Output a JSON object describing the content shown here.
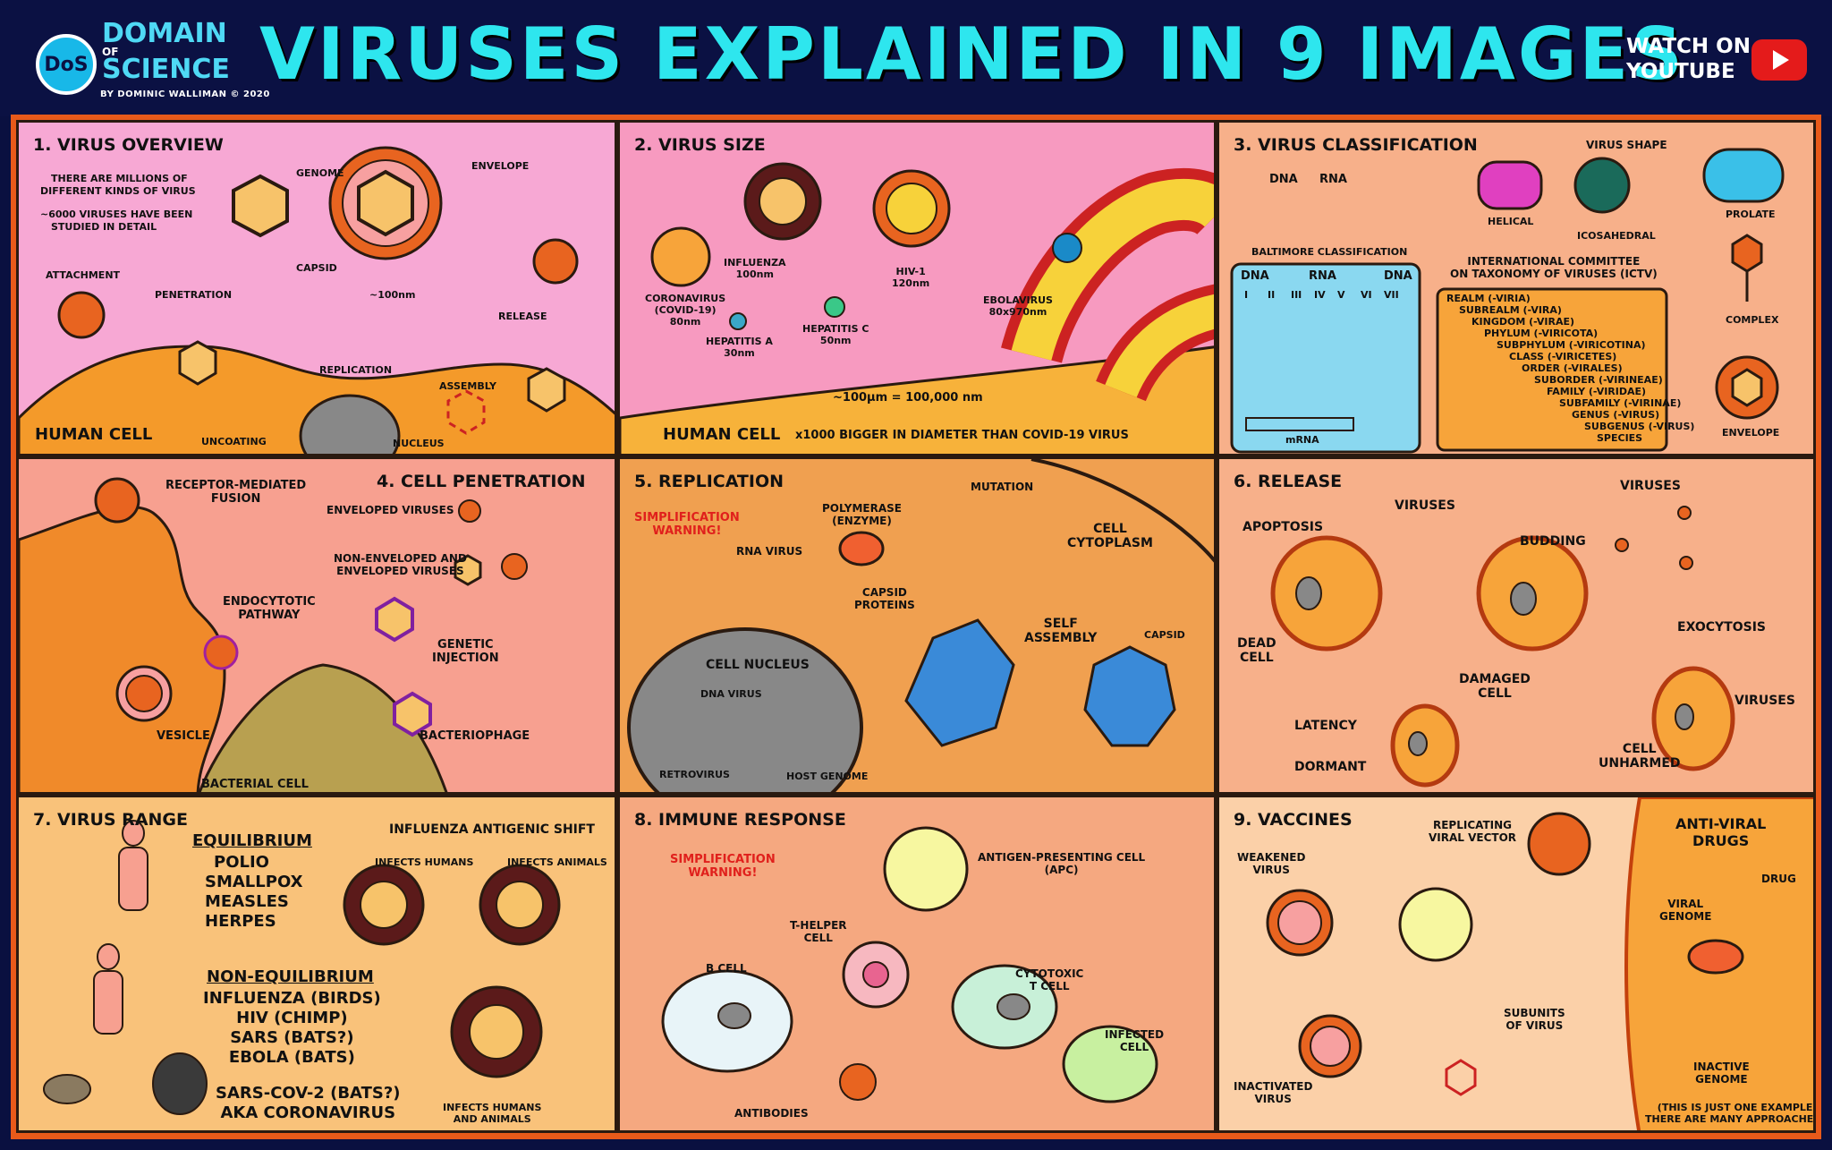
{
  "header": {
    "logo_initials": "DoS",
    "logo_line1": "DOMAIN",
    "logo_of": "OF",
    "logo_line2": "SCIENCE",
    "byline": "BY DOMINIC WALLIMAN © 2020",
    "title": "VIRUSES EXPLAINED IN 9 IMAGES",
    "watch_line1": "WATCH ON",
    "watch_line2": "YOUTUBE"
  },
  "colors": {
    "title": "#2ee6ee",
    "header_bg": "#0b1143",
    "frame": "#e85a1a",
    "youtube": "#e41b1b"
  },
  "p1": {
    "title": "1. VIRUS OVERVIEW",
    "intro1": "THERE ARE MILLIONS OF",
    "intro2": "DIFFERENT KINDS OF VIRUS",
    "intro3": "~6000 VIRUSES HAVE BEEN",
    "intro4": "STUDIED IN DETAIL",
    "genome": "GENOME",
    "envelope": "ENVELOPE",
    "capsid": "CAPSID",
    "size": "~100nm",
    "attachment": "ATTACHMENT",
    "penetration": "PENETRATION",
    "replication": "REPLICATION",
    "assembly": "ASSEMBLY",
    "release": "RELEASE",
    "uncoating": "UNCOATING",
    "nucleus": "NUCLEUS",
    "human_cell": "HUMAN CELL"
  },
  "p2": {
    "title": "2. VIRUS SIZE",
    "influenza": "INFLUENZA",
    "influenza_size": "100nm",
    "hiv": "HIV-1",
    "hiv_size": "120nm",
    "corona1": "CORONAVIRUS",
    "corona2": "(COVID-19)",
    "corona_size": "80nm",
    "hepa": "HEPATITIS A",
    "hepa_size": "30nm",
    "hepc": "HEPATITIS C",
    "hepc_size": "50nm",
    "ebola": "EBOLAVIRUS",
    "ebola_size": "80x970nm",
    "scale": "~100μm = 100,000 nm",
    "human_cell": "HUMAN CELL",
    "bigger": "x1000 BIGGER IN DIAMETER THAN COVID-19 VIRUS"
  },
  "p3": {
    "title": "3. VIRUS CLASSIFICATION",
    "dna": "DNA",
    "rna": "RNA",
    "virus_shape": "VIRUS SHAPE",
    "helical": "HELICAL",
    "icosahedral": "ICOSAHEDRAL",
    "prolate": "PROLATE",
    "complex": "COMPLEX",
    "envelope": "ENVELOPE",
    "baltimore": "BALTIMORE CLASSIFICATION",
    "b_dna": "DNA",
    "b_rna": "RNA",
    "b_dna2": "DNA",
    "b_roman": [
      "I",
      "II",
      "III",
      "IV",
      "V",
      "VI",
      "VII"
    ],
    "mrna": "mRNA",
    "ictv1": "INTERNATIONAL COMMITTEE",
    "ictv2": "ON TAXONOMY OF VIRUSES (ICTV)",
    "taxonomy": [
      "REALM (-VIRIA)",
      "SUBREALM (-VIRA)",
      "KINGDOM (-VIRAE)",
      "PHYLUM (-VIRICOTA)",
      "SUBPHYLUM (-VIRICOTINA)",
      "CLASS (-VIRICETES)",
      "ORDER (-VIRALES)",
      "SUBORDER (-VIRINEAE)",
      "FAMILY (-VIRIDAE)",
      "SUBFAMILY (-VIRINAE)",
      "GENUS (-VIRUS)",
      "SUBGENUS (-VIRUS)",
      "SPECIES"
    ]
  },
  "p4": {
    "title": "4. CELL PENETRATION",
    "receptor1": "RECEPTOR-MEDIATED",
    "receptor2": "FUSION",
    "enveloped": "ENVELOPED VIRUSES",
    "nonenv1": "NON-ENVELOPED AND",
    "nonenv2": "ENVELOPED VIRUSES",
    "endo1": "ENDOCYTOTIC",
    "endo2": "PATHWAY",
    "genetic1": "GENETIC",
    "genetic2": "INJECTION",
    "vesicle": "VESICLE",
    "bacteriophage": "BACTERIOPHAGE",
    "bacterial_cell": "BACTERIAL CELL"
  },
  "p5": {
    "title": "5. REPLICATION",
    "warning1": "SIMPLIFICATION",
    "warning2": "WARNING!",
    "polymerase1": "POLYMERASE",
    "polymerase2": "(ENZYME)",
    "mutation": "MUTATION",
    "rna_virus": "RNA VIRUS",
    "cell1": "CELL",
    "cell2": "CYTOPLASM",
    "capsid_proteins1": "CAPSID",
    "capsid_proteins2": "PROTEINS",
    "self1": "SELF",
    "self2": "ASSEMBLY",
    "capsid": "CAPSID",
    "nucleus": "CELL NUCLEUS",
    "dna_virus": "DNA VIRUS",
    "retrovirus": "RETROVIRUS",
    "host_genome": "HOST GENOME"
  },
  "p6": {
    "title": "6. RELEASE",
    "apoptosis": "APOPTOSIS",
    "viruses_a": "VIRUSES",
    "viruses_b": "VIRUSES",
    "budding": "BUDDING",
    "dead1": "DEAD",
    "dead2": "CELL",
    "damaged1": "DAMAGED",
    "damaged2": "CELL",
    "exocytosis": "EXOCYTOSIS",
    "viruses_c": "VIRUSES",
    "latency": "LATENCY",
    "dormant": "DORMANT",
    "unharmed1": "CELL",
    "unharmed2": "UNHARMED"
  },
  "p7": {
    "title": "7. VIRUS RANGE",
    "equilibrium": "EQUILIBRIUM",
    "eq_list": [
      "POLIO",
      "SMALLPOX",
      "MEASLES",
      "HERPES"
    ],
    "non_equilibrium": "NON-EQUILIBRIUM",
    "neq_list": [
      "INFLUENZA (BIRDS)",
      "HIV (CHIMP)",
      "SARS (BATS?)",
      "EBOLA (BATS)"
    ],
    "sars1": "SARS-COV-2 (BATS?)",
    "sars2": "AKA CORONAVIRUS",
    "shift": "INFLUENZA ANTIGENIC SHIFT",
    "humans": "INFECTS HUMANS",
    "animals": "INFECTS ANIMALS",
    "both1": "INFECTS HUMANS",
    "both2": "AND ANIMALS"
  },
  "p8": {
    "title": "8. IMMUNE RESPONSE",
    "warning1": "SIMPLIFICATION",
    "warning2": "WARNING!",
    "apc1": "ANTIGEN-PRESENTING CELL",
    "apc2": "(APC)",
    "thelper1": "T-HELPER",
    "thelper2": "CELL",
    "bcell": "B CELL",
    "cyto1": "CYTOTOXIC",
    "cyto2": "T CELL",
    "infected1": "INFECTED",
    "infected2": "CELL",
    "antibodies": "ANTIBODIES"
  },
  "p9": {
    "title": "9. VACCINES",
    "weakened1": "WEAKENED",
    "weakened2": "VIRUS",
    "replicating1": "REPLICATING",
    "replicating2": "VIRAL VECTOR",
    "subunits1": "SUBUNITS",
    "subunits2": "OF VIRUS",
    "inactivated1": "INACTIVATED",
    "inactivated2": "VIRUS",
    "antiviral1": "ANTI-VIRAL",
    "antiviral2": "DRUGS",
    "viral1": "VIRAL",
    "viral2": "GENOME",
    "drug": "DRUG",
    "inactive1": "INACTIVE",
    "inactive2": "GENOME",
    "note1": "(THIS IS JUST ONE EXAMPLE",
    "note2": "THERE ARE MANY APPROACHES)"
  }
}
